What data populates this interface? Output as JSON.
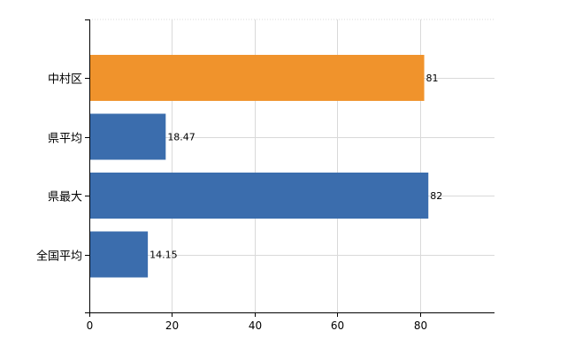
{
  "chart_data": {
    "type": "bar",
    "orientation": "horizontal",
    "categories": [
      "中村区",
      "県平均",
      "県最大",
      "全国平均"
    ],
    "values": [
      81,
      18.47,
      82,
      14.15
    ],
    "value_labels": [
      "81",
      "18.47",
      "82",
      "14.15"
    ],
    "bar_colors": [
      "#f0932c",
      "#3b6dad",
      "#3b6dad",
      "#3b6dad"
    ],
    "xlim": [
      0,
      98
    ],
    "x_ticks": [
      0,
      20,
      40,
      60,
      80
    ],
    "x_tick_labels": [
      "0",
      "20",
      "40",
      "60",
      "80"
    ],
    "grid": true,
    "title": "",
    "xlabel": "",
    "ylabel": ""
  }
}
